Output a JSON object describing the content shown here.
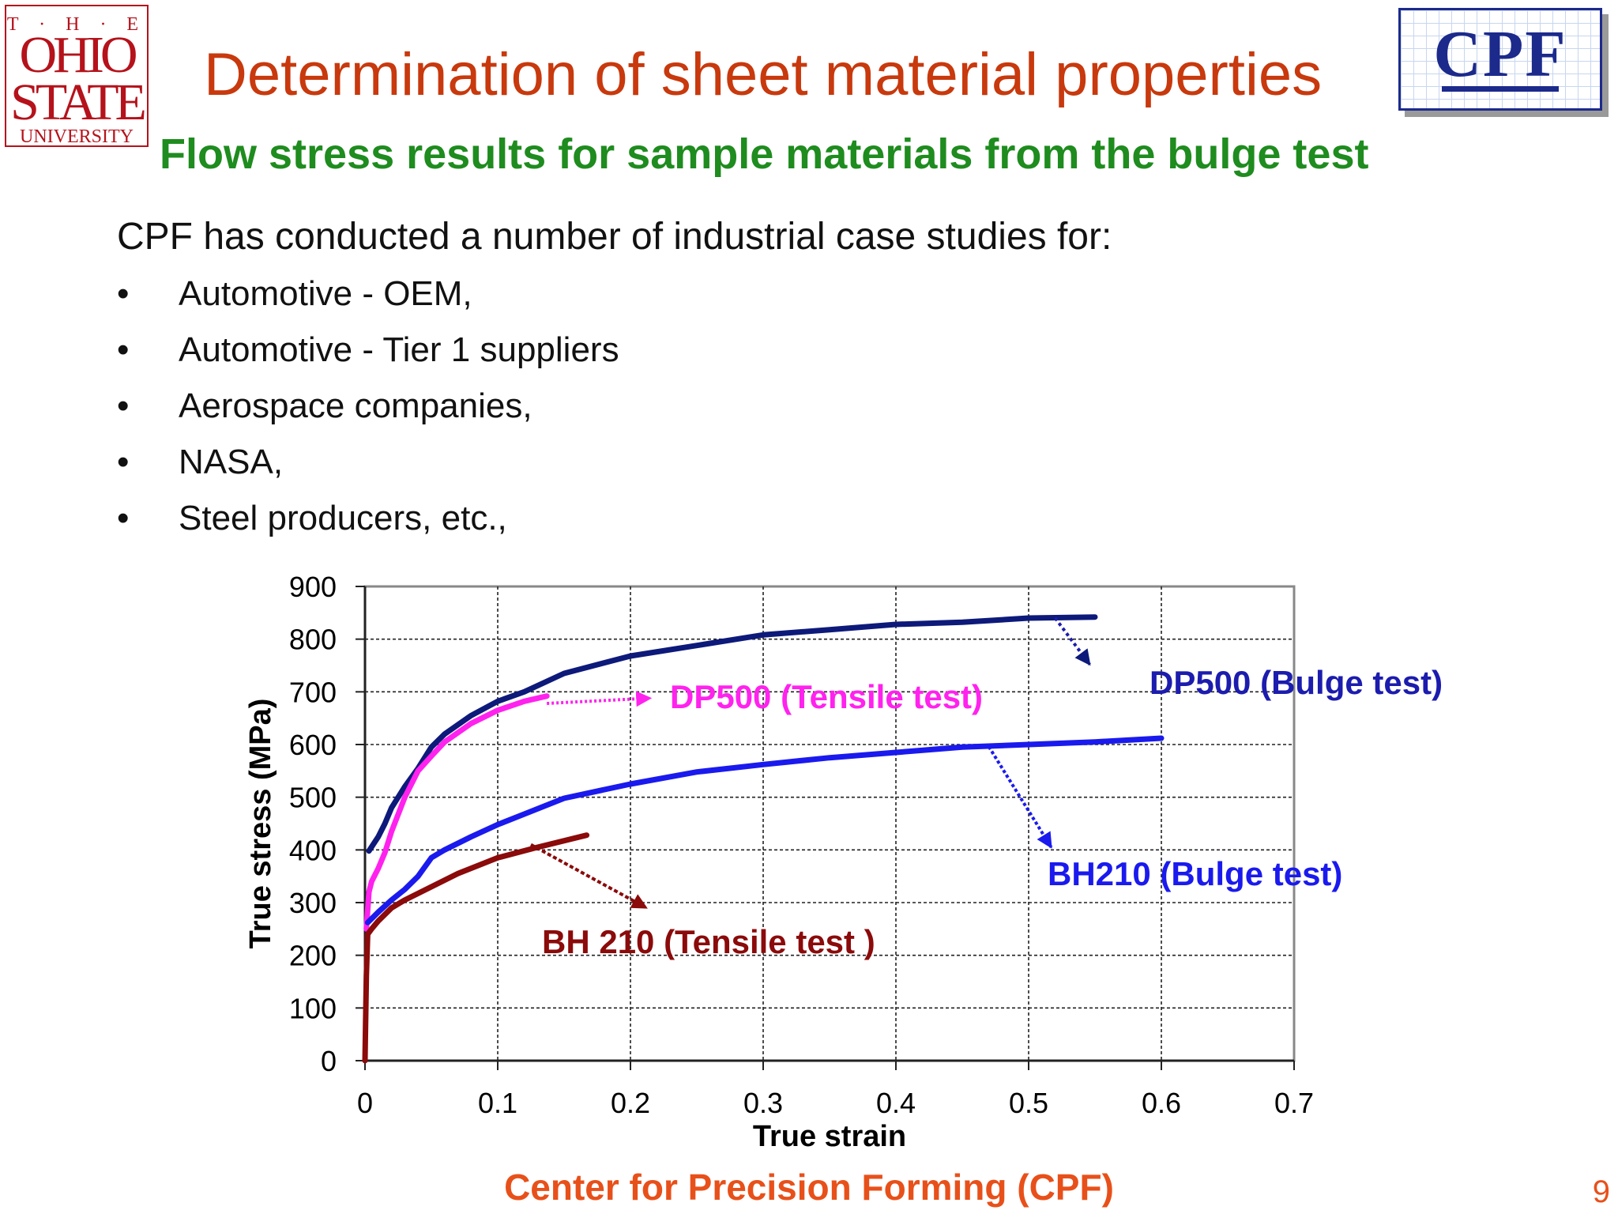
{
  "header": {
    "title": "Determination of sheet material properties",
    "subtitle": "Flow stress results for sample materials from the bulge test"
  },
  "logos": {
    "university": {
      "line1": "T · H · E",
      "line2": "OHIO",
      "line3": "STATE",
      "line4": "UNIVERSITY",
      "color": "#b5121b"
    },
    "cpf": {
      "text": "CPF",
      "color": "#1c2a8c"
    }
  },
  "body": {
    "intro": "CPF has conducted a number of industrial case studies for:",
    "bullet_glyph": "•",
    "bullets": [
      "Automotive - OEM,",
      "Automotive - Tier 1 suppliers",
      "Aerospace companies,",
      "NASA,",
      "Steel producers, etc.,"
    ]
  },
  "chart_data": {
    "type": "line",
    "xlabel": "True strain",
    "ylabel": "True stress (MPa)",
    "xlim": [
      0,
      0.7
    ],
    "ylim": [
      0,
      900
    ],
    "xticks": [
      "0",
      "0.1",
      "0.2",
      "0.3",
      "0.4",
      "0.5",
      "0.6",
      "0.7"
    ],
    "yticks": [
      "0",
      "100",
      "200",
      "300",
      "400",
      "500",
      "600",
      "700",
      "800",
      "900"
    ],
    "grid": true,
    "legend": "none",
    "series": [
      {
        "name": "DP500 (Bulge test)",
        "color": "#0d1a7a",
        "x": [
          0.003,
          0.01,
          0.015,
          0.02,
          0.03,
          0.04,
          0.05,
          0.06,
          0.08,
          0.1,
          0.12,
          0.15,
          0.2,
          0.25,
          0.3,
          0.35,
          0.4,
          0.45,
          0.5,
          0.55
        ],
        "y": [
          398,
          425,
          450,
          480,
          520,
          555,
          595,
          620,
          655,
          682,
          700,
          735,
          768,
          788,
          808,
          818,
          828,
          832,
          840,
          842
        ]
      },
      {
        "name": "DP500 (Tensile test)",
        "color": "#ff22ee",
        "x": [
          0.001,
          0.003,
          0.005,
          0.01,
          0.015,
          0.02,
          0.03,
          0.04,
          0.05,
          0.06,
          0.08,
          0.1,
          0.12,
          0.137
        ],
        "y": [
          250,
          320,
          340,
          365,
          395,
          435,
          500,
          550,
          578,
          605,
          640,
          665,
          682,
          692
        ]
      },
      {
        "name": "BH210 (Bulge test)",
        "color": "#1a1aee",
        "x": [
          0.002,
          0.01,
          0.02,
          0.03,
          0.04,
          0.05,
          0.06,
          0.08,
          0.1,
          0.12,
          0.15,
          0.2,
          0.25,
          0.3,
          0.35,
          0.4,
          0.45,
          0.5,
          0.55,
          0.6
        ],
        "y": [
          262,
          282,
          305,
          325,
          350,
          385,
          400,
          425,
          448,
          468,
          498,
          525,
          548,
          562,
          575,
          585,
          595,
          600,
          605,
          612
        ]
      },
      {
        "name": "BH 210 (Tensile test )",
        "color": "#8b0a0a",
        "x": [
          0.0,
          0.001,
          0.002,
          0.005,
          0.01,
          0.02,
          0.03,
          0.05,
          0.07,
          0.1,
          0.13,
          0.167
        ],
        "y": [
          0,
          160,
          240,
          250,
          265,
          290,
          305,
          330,
          355,
          385,
          405,
          428
        ]
      }
    ],
    "annotations": [
      {
        "text": "DP500 (Bulge test)",
        "color": "#1c1cae",
        "arrow_from": [
          0.52,
          840
        ],
        "arrow_to": [
          0.546,
          752
        ]
      },
      {
        "text": "DP500 (Tensile test)",
        "color": "#ff22ee",
        "arrow_from": [
          0.137,
          678
        ],
        "arrow_to": [
          0.215,
          688
        ]
      },
      {
        "text": "BH210 (Bulge test)",
        "color": "#1a1aee",
        "arrow_from": [
          0.47,
          596
        ],
        "arrow_to": [
          0.517,
          405
        ]
      },
      {
        "text": "BH 210 (Tensile test )",
        "color": "#8b0a0a",
        "arrow_from": [
          0.125,
          410
        ],
        "arrow_to": [
          0.212,
          290
        ]
      }
    ]
  },
  "footer": {
    "center": "Center for Precision Forming (CPF)",
    "page": "9"
  }
}
